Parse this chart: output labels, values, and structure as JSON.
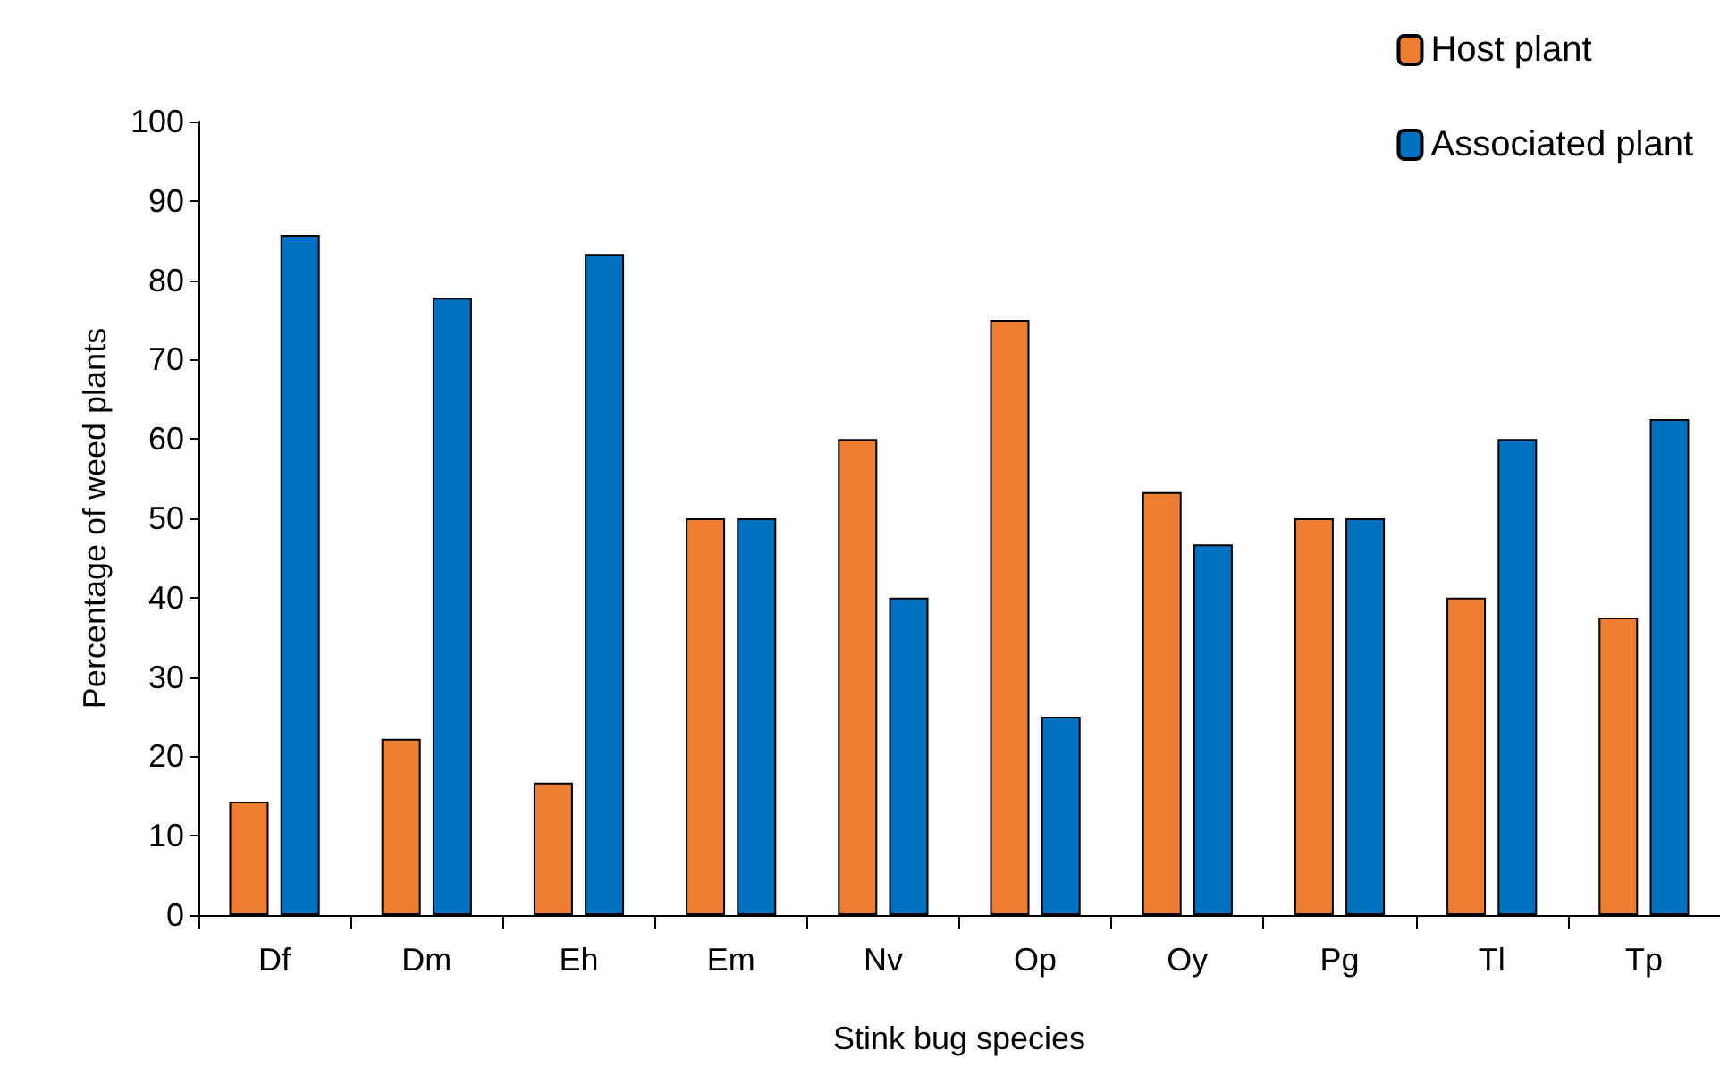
{
  "chart_data": {
    "type": "bar",
    "xlabel": "Stink bug species",
    "ylabel": "Percentage of weed plants",
    "categories": [
      "Df",
      "Dm",
      "Eh",
      "Em",
      "Nv",
      "Op",
      "Oy",
      "Pg",
      "Tl",
      "Tp"
    ],
    "series": [
      {
        "name": "Host plant",
        "color": "#ed7d31",
        "values": [
          14.3,
          22.2,
          16.7,
          50,
          60,
          75,
          53.3,
          50,
          40,
          37.5
        ]
      },
      {
        "name": "Associated plant",
        "color": "#0070c0",
        "values": [
          85.7,
          77.8,
          83.3,
          50,
          40,
          25,
          46.7,
          50,
          60,
          62.5
        ]
      }
    ],
    "ylim": [
      0,
      100
    ],
    "yticks": [
      0,
      10,
      20,
      30,
      40,
      50,
      60,
      70,
      80,
      90,
      100
    ],
    "grid": false,
    "legend": "top right"
  }
}
